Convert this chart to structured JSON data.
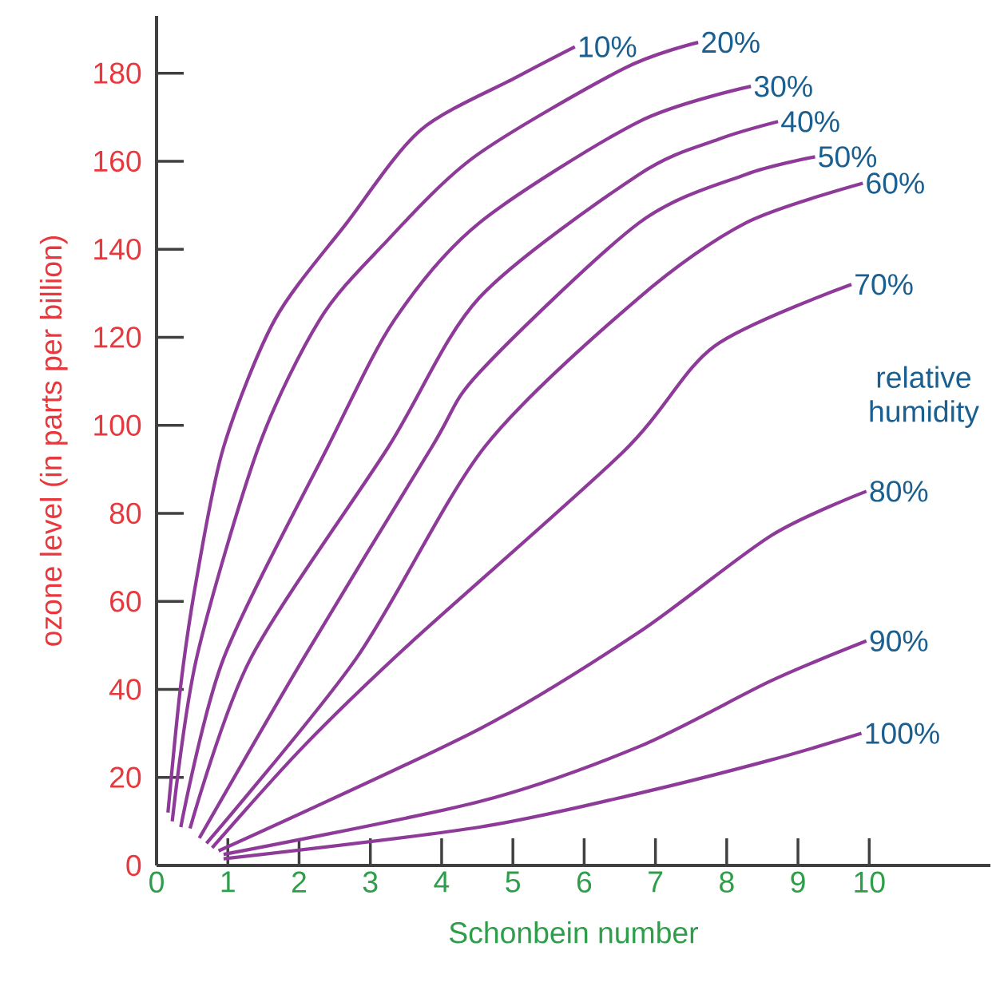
{
  "chart_data": {
    "type": "line",
    "xlabel": "Schonbein number",
    "ylabel": "ozone level (in parts per billion)",
    "xlim": [
      0,
      11.7
    ],
    "ylim": [
      0,
      193
    ],
    "xticks": [
      0,
      1,
      2,
      3,
      4,
      5,
      6,
      7,
      8,
      9,
      10
    ],
    "yticks": [
      0,
      20,
      40,
      60,
      80,
      100,
      120,
      140,
      160,
      180
    ],
    "grid": false,
    "legend": false,
    "marker": "none",
    "line_style": "solid",
    "annotations": [
      "relative humidity"
    ],
    "series": [
      {
        "name": "10%",
        "color": "#8e3a99",
        "x": [
          0.16,
          0.34,
          0.56,
          0.94,
          1.66,
          2.67,
          3.7,
          5.04,
          5.87
        ],
        "values": [
          12,
          41,
          65,
          95,
          124,
          146,
          167,
          179,
          186
        ]
      },
      {
        "name": "20%",
        "color": "#8e3a99",
        "x": [
          0.22,
          0.56,
          1.43,
          2.29,
          3.18,
          4.46,
          6.55,
          7.6
        ],
        "values": [
          10,
          47,
          95,
          124,
          141,
          161,
          181,
          187
        ]
      },
      {
        "name": "30%",
        "color": "#8e3a99",
        "x": [
          0.34,
          0.94,
          2.4,
          3.34,
          4.53,
          6.77,
          8.34
        ],
        "values": [
          8.7,
          47,
          95,
          124,
          146,
          169,
          177
        ]
      },
      {
        "name": "40%",
        "color": "#8e3a99",
        "x": [
          0.47,
          1.32,
          3.25,
          4.53,
          6.77,
          7.89,
          8.72
        ],
        "values": [
          8.4,
          47,
          95,
          129,
          157,
          165,
          169
        ]
      },
      {
        "name": "50%",
        "color": "#8e3a99",
        "x": [
          0.6,
          2.06,
          3.86,
          4.53,
          6.77,
          8.27,
          9.24
        ],
        "values": [
          6.2,
          47,
          95,
          112,
          146,
          157,
          161
        ]
      },
      {
        "name": "60%",
        "color": "#8e3a99",
        "x": [
          0.7,
          2.8,
          4.6,
          6.77,
          8.27,
          9.91
        ],
        "values": [
          5,
          47,
          95,
          129,
          146,
          155
        ]
      },
      {
        "name": "70%",
        "color": "#8e3a99",
        "x": [
          0.78,
          2.06,
          3.56,
          6.55,
          7.83,
          9.75
        ],
        "values": [
          4,
          27,
          50.5,
          94,
          118,
          132
        ]
      },
      {
        "name": "80%",
        "color": "#8e3a99",
        "x": [
          0.87,
          4.53,
          6.77,
          8.63,
          9.96
        ],
        "values": [
          3.3,
          31,
          53,
          75,
          85
        ]
      },
      {
        "name": "90%",
        "color": "#8e3a99",
        "x": [
          0.94,
          4.53,
          6.77,
          8.63,
          9.96
        ],
        "values": [
          2.5,
          14.5,
          27,
          42,
          51
        ]
      },
      {
        "name": "100%",
        "color": "#8e3a99",
        "x": [
          0.94,
          4.53,
          6.77,
          8.63,
          9.89
        ],
        "values": [
          1.5,
          8.7,
          16.4,
          24,
          30
        ]
      }
    ]
  }
}
